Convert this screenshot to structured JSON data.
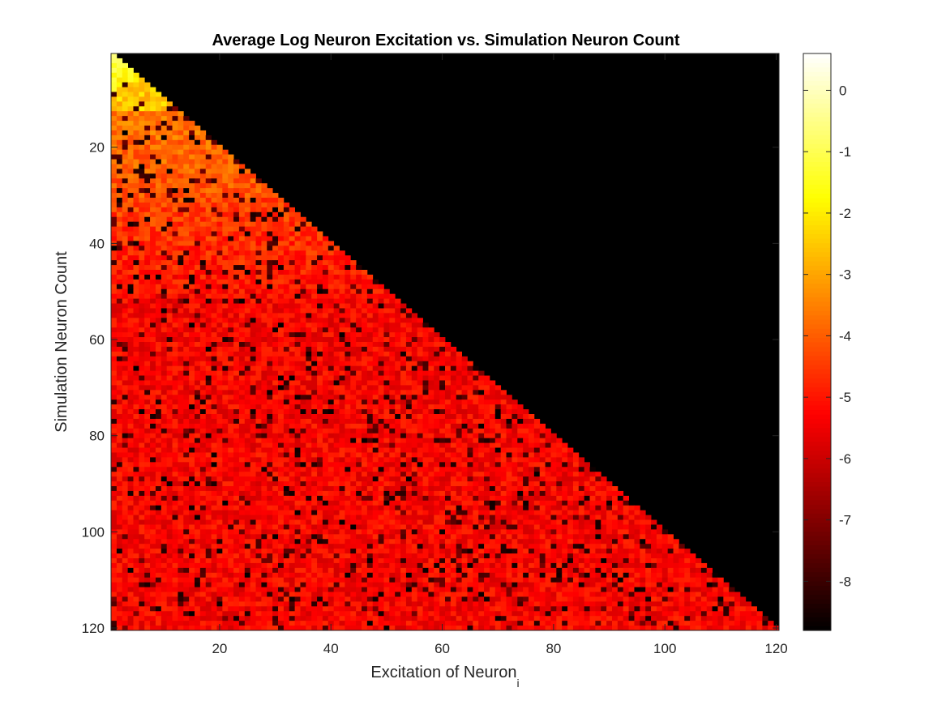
{
  "chart_data": {
    "type": "heatmap",
    "title": "Average Log Neuron Excitation vs. Simulation Neuron Count",
    "xlabel": "Excitation of Neuron",
    "xlabel_subscript": "i",
    "ylabel": "Simulation Neuron Count",
    "x_range": [
      1,
      120
    ],
    "y_range": [
      1,
      120
    ],
    "y_direction": "reversed",
    "x_ticks": [
      20,
      40,
      60,
      80,
      100,
      120
    ],
    "y_ticks": [
      20,
      40,
      60,
      80,
      100,
      120
    ],
    "mask": "cells with x > y are empty (black); only lower-left triangle x <= y has values",
    "value_trend": "approximately 0 near (1,1), about -2 to -3 near y=5..15, about -3.5 to -4.5 near y=20..45, about -5 to -5.5 for y > 50, with scattered low cells down to -8.8",
    "colormap": "hot",
    "color_range": [
      -8.8,
      0.6
    ],
    "colorbar_ticks": [
      0,
      -1,
      -2,
      -3,
      -4,
      -5,
      -6,
      -7,
      -8
    ],
    "grid": false,
    "legend": "colorbar right"
  }
}
